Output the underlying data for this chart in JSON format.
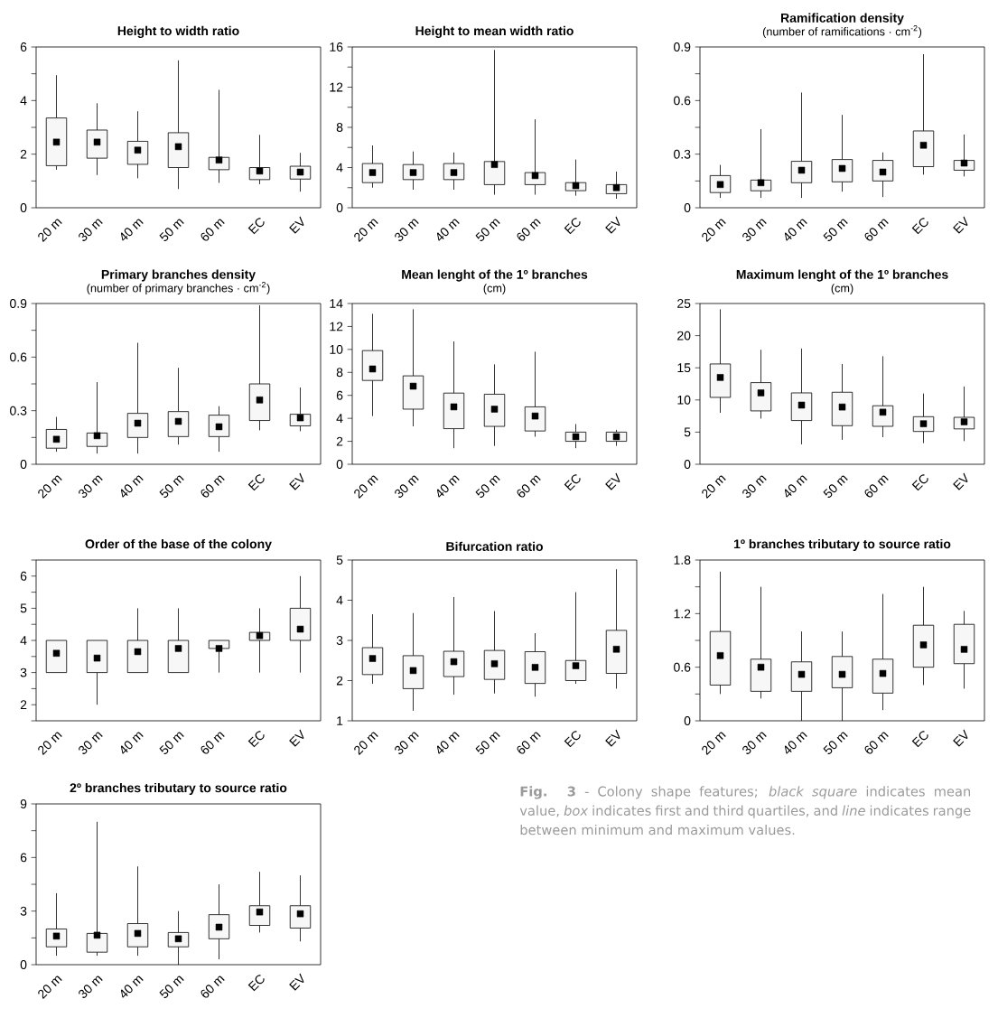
{
  "chart_data": [
    {
      "type": "box",
      "title": "Height to width ratio",
      "categories": [
        "20 m",
        "30 m",
        "40 m",
        "50 m",
        "60 m",
        "EC",
        "EV"
      ],
      "color": "#000000",
      "marker": "square",
      "ylim": [
        0,
        6
      ],
      "yticks": [
        0,
        {
          "value": 1,
          "label": null
        },
        2,
        {
          "value": 3,
          "label": null
        },
        4,
        {
          "value": 5,
          "label": null
        },
        6
      ],
      "boxes": [
        {
          "low": 1.42,
          "q1": 1.57,
          "q3": 3.35,
          "high": 4.95,
          "mean": 2.45
        },
        {
          "low": 1.22,
          "q1": 1.85,
          "q3": 2.9,
          "high": 3.9,
          "mean": 2.45
        },
        {
          "low": 1.1,
          "q1": 1.62,
          "q3": 2.48,
          "high": 3.6,
          "mean": 2.15
        },
        {
          "low": 0.7,
          "q1": 1.5,
          "q3": 2.8,
          "high": 5.5,
          "mean": 2.28
        },
        {
          "low": 0.93,
          "q1": 1.42,
          "q3": 1.88,
          "high": 4.4,
          "mean": 1.78
        },
        {
          "low": 0.88,
          "q1": 1.05,
          "q3": 1.5,
          "high": 2.72,
          "mean": 1.37
        },
        {
          "low": 0.6,
          "q1": 1.07,
          "q3": 1.55,
          "high": 2.05,
          "mean": 1.33
        }
      ]
    },
    {
      "type": "box",
      "title": "Height to mean width ratio",
      "categories": [
        "20 m",
        "30 m",
        "40 m",
        "50 m",
        "60 m",
        "EC",
        "EV"
      ],
      "color": "#000000",
      "marker": "square",
      "ylim": [
        0,
        16
      ],
      "yticks": [
        0,
        {
          "value": 2,
          "label": null
        },
        4,
        {
          "value": 6,
          "label": null
        },
        8,
        {
          "value": 10,
          "label": null
        },
        12,
        {
          "value": 14,
          "label": null
        },
        16
      ],
      "boxes": [
        {
          "low": 2.0,
          "q1": 2.5,
          "q3": 4.4,
          "high": 6.2,
          "mean": 3.5
        },
        {
          "low": 1.8,
          "q1": 2.8,
          "q3": 4.3,
          "high": 5.6,
          "mean": 3.5
        },
        {
          "low": 1.8,
          "q1": 2.8,
          "q3": 4.4,
          "high": 5.5,
          "mean": 3.5
        },
        {
          "low": 1.3,
          "q1": 2.3,
          "q3": 4.6,
          "high": 15.7,
          "mean": 4.3
        },
        {
          "low": 1.3,
          "q1": 2.3,
          "q3": 3.5,
          "high": 8.8,
          "mean": 3.2
        },
        {
          "low": 1.2,
          "q1": 1.7,
          "q3": 2.5,
          "high": 4.8,
          "mean": 2.2
        },
        {
          "low": 0.9,
          "q1": 1.4,
          "q3": 2.3,
          "high": 3.6,
          "mean": 2.0
        }
      ]
    },
    {
      "type": "box",
      "title": "Ramification density",
      "subtitle": "(number of ramifications · cm$^{-2}$)",
      "categories": [
        "20 m",
        "30 m",
        "40 m",
        "50 m",
        "60 m",
        "EC",
        "EV"
      ],
      "color": "#000000",
      "marker": "square",
      "ylim": [
        0,
        0.9
      ],
      "yticks": [
        0,
        {
          "value": 0.15,
          "label": null
        },
        0.3,
        {
          "value": 0.45,
          "label": null
        },
        0.6,
        {
          "value": 0.75,
          "label": null
        },
        0.9
      ],
      "boxes": [
        {
          "low": 0.055,
          "q1": 0.085,
          "q3": 0.18,
          "high": 0.24,
          "mean": 0.13
        },
        {
          "low": 0.055,
          "q1": 0.095,
          "q3": 0.155,
          "high": 0.44,
          "mean": 0.14
        },
        {
          "low": 0.055,
          "q1": 0.14,
          "q3": 0.26,
          "high": 0.645,
          "mean": 0.21
        },
        {
          "low": 0.09,
          "q1": 0.145,
          "q3": 0.27,
          "high": 0.52,
          "mean": 0.22
        },
        {
          "low": 0.06,
          "q1": 0.15,
          "q3": 0.265,
          "high": 0.31,
          "mean": 0.2
        },
        {
          "low": 0.185,
          "q1": 0.23,
          "q3": 0.43,
          "high": 0.86,
          "mean": 0.35
        },
        {
          "low": 0.175,
          "q1": 0.21,
          "q3": 0.265,
          "high": 0.41,
          "mean": 0.25
        }
      ]
    },
    {
      "type": "box",
      "title": "Primary branches density",
      "subtitle": "(number of primary branches · cm$^{-2}$)",
      "categories": [
        "20 m",
        "30 m",
        "40 m",
        "50 m",
        "60 m",
        "EC",
        "EV"
      ],
      "color": "#000000",
      "marker": "square",
      "ylim": [
        0,
        0.9
      ],
      "yticks": [
        0,
        {
          "value": 0.15,
          "label": null
        },
        0.3,
        {
          "value": 0.45,
          "label": null
        },
        0.6,
        {
          "value": 0.75,
          "label": null
        },
        0.9
      ],
      "boxes": [
        {
          "low": 0.07,
          "q1": 0.09,
          "q3": 0.195,
          "high": 0.265,
          "mean": 0.14
        },
        {
          "low": 0.06,
          "q1": 0.1,
          "q3": 0.175,
          "high": 0.46,
          "mean": 0.16
        },
        {
          "low": 0.06,
          "q1": 0.15,
          "q3": 0.285,
          "high": 0.68,
          "mean": 0.23
        },
        {
          "low": 0.11,
          "q1": 0.155,
          "q3": 0.295,
          "high": 0.54,
          "mean": 0.24
        },
        {
          "low": 0.07,
          "q1": 0.155,
          "q3": 0.275,
          "high": 0.325,
          "mean": 0.21
        },
        {
          "low": 0.19,
          "q1": 0.245,
          "q3": 0.45,
          "high": 0.89,
          "mean": 0.36
        },
        {
          "low": 0.185,
          "q1": 0.215,
          "q3": 0.28,
          "high": 0.43,
          "mean": 0.26
        }
      ]
    },
    {
      "type": "box",
      "title": "Mean lenght of the 1º branches",
      "subtitle": "(cm)",
      "categories": [
        "20 m",
        "30 m",
        "40 m",
        "50 m",
        "60 m",
        "EC",
        "EV"
      ],
      "color": "#000000",
      "marker": "square",
      "ylim": [
        0,
        14
      ],
      "yticks": [
        0,
        2,
        4,
        6,
        8,
        10,
        12,
        14
      ],
      "boxes": [
        {
          "low": 4.2,
          "q1": 7.3,
          "q3": 9.9,
          "high": 13.1,
          "mean": 8.3
        },
        {
          "low": 3.3,
          "q1": 4.8,
          "q3": 7.7,
          "high": 13.5,
          "mean": 6.8
        },
        {
          "low": 1.4,
          "q1": 3.1,
          "q3": 6.2,
          "high": 10.7,
          "mean": 5.0
        },
        {
          "low": 1.6,
          "q1": 3.3,
          "q3": 6.1,
          "high": 8.7,
          "mean": 4.8
        },
        {
          "low": 2.4,
          "q1": 2.9,
          "q3": 5.0,
          "high": 9.8,
          "mean": 4.2
        },
        {
          "low": 1.4,
          "q1": 2.0,
          "q3": 2.8,
          "high": 3.5,
          "mean": 2.4
        },
        {
          "low": 1.6,
          "q1": 2.0,
          "q3": 2.8,
          "high": 3.0,
          "mean": 2.4
        }
      ]
    },
    {
      "type": "box",
      "title": "Maximum lenght of the 1º branches",
      "subtitle": "(cm)",
      "categories": [
        "20 m",
        "30 m",
        "40 m",
        "50 m",
        "60 m",
        "EC",
        "EV"
      ],
      "color": "#000000",
      "marker": "square",
      "ylim": [
        0,
        25
      ],
      "yticks": [
        0,
        5,
        10,
        15,
        20,
        25
      ],
      "boxes": [
        {
          "low": 8.0,
          "q1": 10.4,
          "q3": 15.6,
          "high": 24.1,
          "mean": 13.5
        },
        {
          "low": 7.1,
          "q1": 8.3,
          "q3": 12.7,
          "high": 17.8,
          "mean": 11.1
        },
        {
          "low": 3.1,
          "q1": 6.8,
          "q3": 11.1,
          "high": 18.0,
          "mean": 9.2
        },
        {
          "low": 3.8,
          "q1": 6.0,
          "q3": 11.2,
          "high": 15.6,
          "mean": 8.9
        },
        {
          "low": 4.2,
          "q1": 5.9,
          "q3": 9.1,
          "high": 16.8,
          "mean": 8.1
        },
        {
          "low": 3.3,
          "q1": 5.1,
          "q3": 7.4,
          "high": 11.0,
          "mean": 6.3
        },
        {
          "low": 3.6,
          "q1": 5.5,
          "q3": 7.3,
          "high": 12.1,
          "mean": 6.6
        }
      ]
    },
    {
      "type": "box",
      "title": "Order of the base of the colony",
      "categories": [
        "20 m",
        "30 m",
        "40 m",
        "50 m",
        "60 m",
        "EC",
        "EV"
      ],
      "color": "#000000",
      "marker": "square",
      "ylim": [
        1.5,
        6.5
      ],
      "yticks": [
        {
          "value": 1.5,
          "label": null
        },
        2,
        {
          "value": 2.5,
          "label": null
        },
        3,
        {
          "value": 3.5,
          "label": null
        },
        4,
        {
          "value": 4.5,
          "label": null
        },
        5,
        {
          "value": 5.5,
          "label": null
        },
        6,
        {
          "value": 6.5,
          "label": null
        }
      ],
      "boxes": [
        {
          "low": 3,
          "q1": 3,
          "q3": 4,
          "high": 4,
          "mean": 3.6
        },
        {
          "low": 2,
          "q1": 3,
          "q3": 4,
          "high": 4,
          "mean": 3.45
        },
        {
          "low": 3,
          "q1": 3,
          "q3": 4,
          "high": 5,
          "mean": 3.65
        },
        {
          "low": 3,
          "q1": 3,
          "q3": 4,
          "high": 5,
          "mean": 3.75
        },
        {
          "low": 3,
          "q1": 3.75,
          "q3": 4,
          "high": 4,
          "mean": 3.75
        },
        {
          "low": 3,
          "q1": 4,
          "q3": 4.25,
          "high": 5,
          "mean": 4.15
        },
        {
          "low": 3,
          "q1": 4,
          "q3": 5,
          "high": 6,
          "mean": 4.35
        }
      ]
    },
    {
      "type": "box",
      "title": "Bifurcation ratio",
      "categories": [
        "20 m",
        "30 m",
        "40 m",
        "50 m",
        "60 m",
        "EC",
        "EV"
      ],
      "color": "#000000",
      "marker": "square",
      "ylim": [
        1,
        5
      ],
      "yticks": [
        1,
        2,
        3,
        4,
        5
      ],
      "boxes": [
        {
          "low": 1.92,
          "q1": 2.15,
          "q3": 2.82,
          "high": 3.65,
          "mean": 2.55
        },
        {
          "low": 1.25,
          "q1": 1.8,
          "q3": 2.62,
          "high": 3.68,
          "mean": 2.25
        },
        {
          "low": 1.65,
          "q1": 2.1,
          "q3": 2.73,
          "high": 4.08,
          "mean": 2.47
        },
        {
          "low": 1.68,
          "q1": 2.03,
          "q3": 2.75,
          "high": 3.73,
          "mean": 2.42
        },
        {
          "low": 1.6,
          "q1": 1.93,
          "q3": 2.72,
          "high": 3.18,
          "mean": 2.33
        },
        {
          "low": 1.92,
          "q1": 2.0,
          "q3": 2.5,
          "high": 4.2,
          "mean": 2.37
        },
        {
          "low": 1.8,
          "q1": 2.18,
          "q3": 3.25,
          "high": 4.77,
          "mean": 2.78
        }
      ]
    },
    {
      "type": "box",
      "title": "1º branches tributary to source ratio",
      "categories": [
        "20 m",
        "30 m",
        "40 m",
        "50 m",
        "60 m",
        "EC",
        "EV"
      ],
      "color": "#000000",
      "marker": "square",
      "ylim": [
        0,
        1.8
      ],
      "yticks": [
        0,
        {
          "value": 0.3,
          "label": null
        },
        0.6,
        {
          "value": 0.9,
          "label": null
        },
        1.2,
        {
          "value": 1.5,
          "label": null
        },
        1.8
      ],
      "boxes": [
        {
          "low": 0.3,
          "q1": 0.4,
          "q3": 1.0,
          "high": 1.67,
          "mean": 0.73
        },
        {
          "low": 0.25,
          "q1": 0.33,
          "q3": 0.69,
          "high": 1.5,
          "mean": 0.6
        },
        {
          "low": 0.0,
          "q1": 0.33,
          "q3": 0.66,
          "high": 1.0,
          "mean": 0.52
        },
        {
          "low": 0.0,
          "q1": 0.37,
          "q3": 0.72,
          "high": 1.0,
          "mean": 0.52
        },
        {
          "low": 0.12,
          "q1": 0.31,
          "q3": 0.69,
          "high": 1.42,
          "mean": 0.53
        },
        {
          "low": 0.4,
          "q1": 0.6,
          "q3": 1.07,
          "high": 1.5,
          "mean": 0.85
        },
        {
          "low": 0.36,
          "q1": 0.64,
          "q3": 1.08,
          "high": 1.23,
          "mean": 0.8
        }
      ]
    },
    {
      "type": "box",
      "title": "2º branches tributary to source ratio",
      "categories": [
        "20 m",
        "30 m",
        "40 m",
        "50 m",
        "60 m",
        "EC",
        "EV"
      ],
      "color": "#000000",
      "marker": "square",
      "ylim": [
        0,
        9
      ],
      "yticks": [
        0,
        {
          "value": 1.5,
          "label": null
        },
        3,
        {
          "value": 4.5,
          "label": null
        },
        6,
        {
          "value": 7.5,
          "label": null
        },
        9
      ],
      "annotations": [
        "**Fig. 3** - Colony shape features; *black square* indicates mean value, *box* indicates first and third quartiles, and *line* indicates range between minimum and maximum values."
      ],
      "boxes": [
        {
          "low": 0.5,
          "q1": 1.0,
          "q3": 2.0,
          "high": 4.0,
          "mean": 1.6
        },
        {
          "low": 0.5,
          "q1": 0.7,
          "q3": 1.75,
          "high": 8.0,
          "mean": 1.65
        },
        {
          "low": 0.5,
          "q1": 1.0,
          "q3": 2.3,
          "high": 5.5,
          "mean": 1.75
        },
        {
          "low": 0.0,
          "q1": 1.0,
          "q3": 1.8,
          "high": 3.0,
          "mean": 1.45
        },
        {
          "low": 0.3,
          "q1": 1.45,
          "q3": 2.8,
          "high": 4.5,
          "mean": 2.1
        },
        {
          "low": 1.8,
          "q1": 2.2,
          "q3": 3.3,
          "high": 5.2,
          "mean": 2.95
        },
        {
          "low": 1.3,
          "q1": 2.05,
          "q3": 3.3,
          "high": 5.0,
          "mean": 2.85
        }
      ]
    }
  ]
}
